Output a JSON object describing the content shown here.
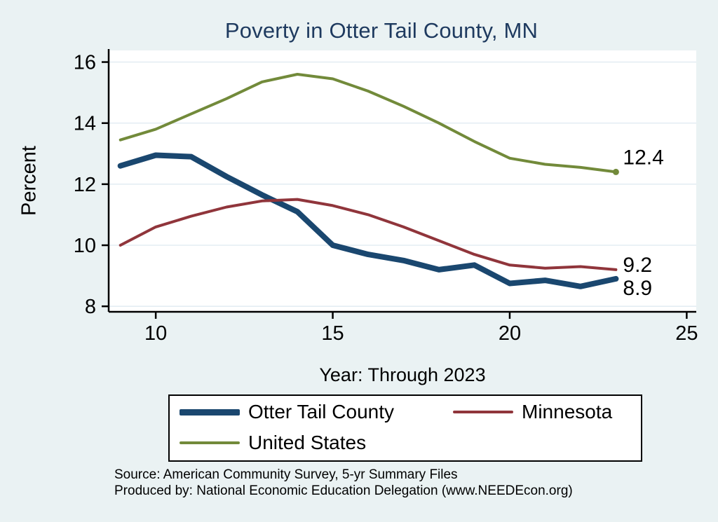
{
  "window": {
    "background": "#eaf2f3"
  },
  "chart": {
    "title": "Poverty in Otter Tail County, MN",
    "title_color": "#1e3a5f",
    "ylabel": "Percent",
    "xlabel": "Year: Through 2023",
    "plot_bg": "#ffffff",
    "grid_color": "#e4edf3",
    "axis_color": "#000000"
  },
  "chart_data": {
    "type": "line",
    "x": [
      9,
      10,
      11,
      12,
      13,
      14,
      15,
      16,
      17,
      18,
      19,
      20,
      21,
      22,
      23
    ],
    "series": [
      {
        "name": "Otter Tail County",
        "color": "#1a476f",
        "width": 8,
        "values": [
          12.6,
          12.95,
          12.9,
          12.25,
          11.65,
          11.1,
          10.0,
          9.7,
          9.5,
          9.2,
          9.35,
          8.75,
          8.85,
          8.65,
          8.9
        ],
        "end_label": "8.9",
        "end_label_dy": 13,
        "end_marker": false
      },
      {
        "name": "Minnesota",
        "color": "#90353b",
        "width": 4,
        "values": [
          10.0,
          10.6,
          10.95,
          11.25,
          11.45,
          11.5,
          11.3,
          11.0,
          10.6,
          10.15,
          9.7,
          9.35,
          9.25,
          9.3,
          9.2
        ],
        "end_label": "9.2",
        "end_label_dy": -7,
        "end_marker": false
      },
      {
        "name": "United States",
        "color": "#728a3a",
        "width": 4,
        "values": [
          13.45,
          13.8,
          14.3,
          14.8,
          15.35,
          15.6,
          15.45,
          15.05,
          14.55,
          14.0,
          13.4,
          12.85,
          12.65,
          12.55,
          12.4
        ],
        "end_label": "12.4",
        "end_label_dy": -21,
        "end_marker": true
      }
    ],
    "xticks": [
      10,
      15,
      20,
      25
    ],
    "yticks": [
      8,
      10,
      12,
      14,
      16
    ],
    "xlim": [
      8.67,
      25.27
    ],
    "ylim": [
      7.82,
      16.38
    ],
    "grid": true,
    "legend_position": "bottom"
  },
  "footer": {
    "source_line1": "Source: American Community Survey, 5-yr Summary Files",
    "source_line2": "Produced by: National Economic Education Delegation (www.NEEDEcon.org)"
  }
}
